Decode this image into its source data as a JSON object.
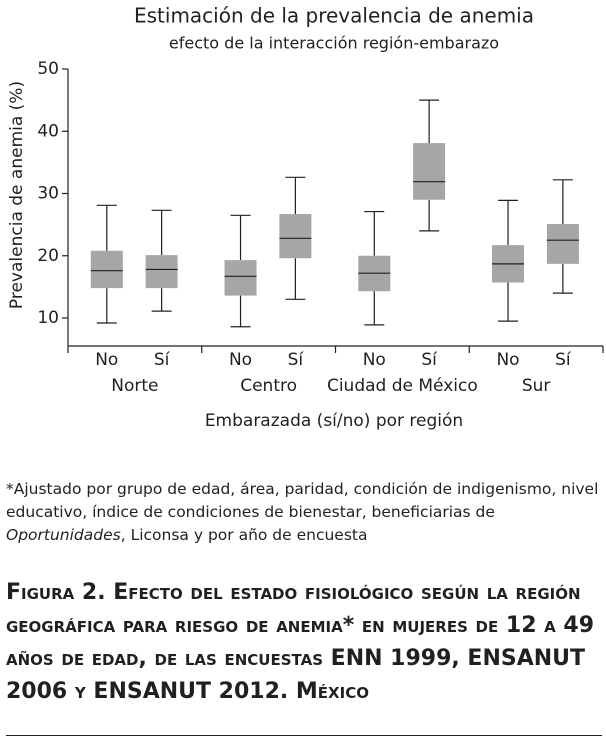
{
  "chart_data": {
    "type": "box",
    "title": "Estimación de la prevalencia de anemia",
    "subtitle": "efecto de la interacción región-embarazo",
    "y_label": "Prevalencia de anemia (%)",
    "x_label": "Embarazada (sí/no) por región",
    "groups": [
      "Norte",
      "Centro",
      "Ciudad de México",
      "Sur"
    ],
    "categories": [
      "No",
      "Sí",
      "No",
      "Sí",
      "No",
      "Sí",
      "No",
      "Sí"
    ],
    "color": "#a6a6a6",
    "boxes": [
      {
        "min": 9.2,
        "q1": 14.8,
        "median": 17.6,
        "q3": 20.8,
        "max": 28.1
      },
      {
        "min": 11.1,
        "q1": 14.8,
        "median": 17.8,
        "q3": 20.1,
        "max": 27.3
      },
      {
        "min": 8.6,
        "q1": 13.6,
        "median": 16.7,
        "q3": 19.3,
        "max": 26.5
      },
      {
        "min": 13.0,
        "q1": 19.6,
        "median": 22.8,
        "q3": 26.7,
        "max": 32.6
      },
      {
        "min": 8.9,
        "q1": 14.3,
        "median": 17.2,
        "q3": 20.0,
        "max": 27.1
      },
      {
        "min": 24.0,
        "q1": 29.0,
        "median": 31.9,
        "q3": 38.1,
        "max": 45.0
      },
      {
        "min": 9.5,
        "q1": 15.7,
        "median": 18.7,
        "q3": 21.7,
        "max": 28.9
      },
      {
        "min": 14.0,
        "q1": 18.7,
        "median": 22.5,
        "q3": 25.1,
        "max": 32.2
      }
    ],
    "ylim": [
      5.5,
      50
    ],
    "yticks": [
      10,
      20,
      30,
      40,
      50
    ]
  },
  "footnote": [
    "*Ajustado por grupo de edad, área, paridad, condición de indigenismo, nivel educativo, índice de condiciones de bienestar, beneficiarias de ",
    "Oportunidades",
    ", Liconsa y por año de encuesta"
  ],
  "caption": "Figura 2. Efecto del estado fisiológico según la región geográfica para riesgo de anemia* en mujeres de 12 a 49 años de edad, de las encuestas ENN 1999, ENSANUT 2006 y ENSANUT 2012. México"
}
